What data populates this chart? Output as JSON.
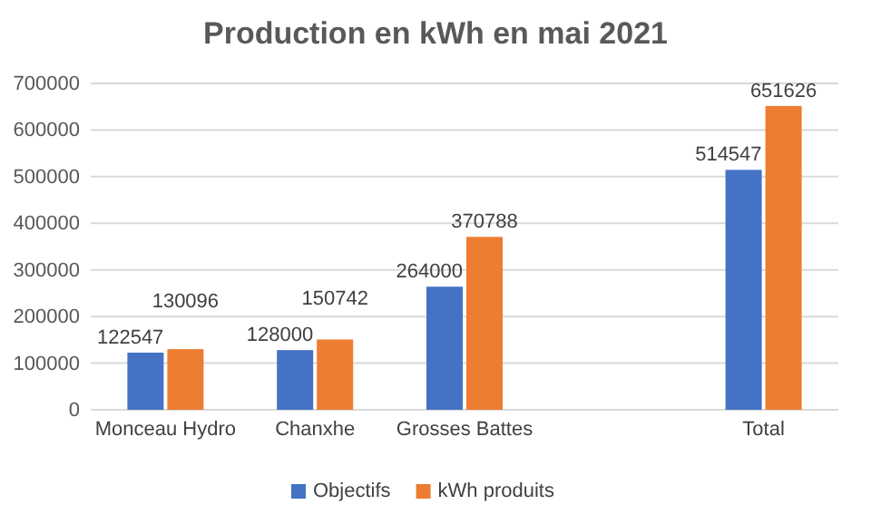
{
  "chart_data": {
    "type": "bar",
    "title": "Production en kWh en mai 2021",
    "categories": [
      "Monceau Hydro",
      "Chanxhe",
      "Grosses Battes",
      null,
      "Total"
    ],
    "series": [
      {
        "name": "Objectifs",
        "color": "#4472c4",
        "values": [
          122547,
          128000,
          264000,
          null,
          514547
        ]
      },
      {
        "name": "kWh produits",
        "color": "#ed7d31",
        "values": [
          130096,
          150742,
          370788,
          null,
          651626
        ]
      }
    ],
    "ylim": [
      0,
      700000
    ],
    "yticks": [
      0,
      100000,
      200000,
      300000,
      400000,
      500000,
      600000,
      700000
    ],
    "grid": "y",
    "legend": "bottom",
    "data_labels": true
  }
}
